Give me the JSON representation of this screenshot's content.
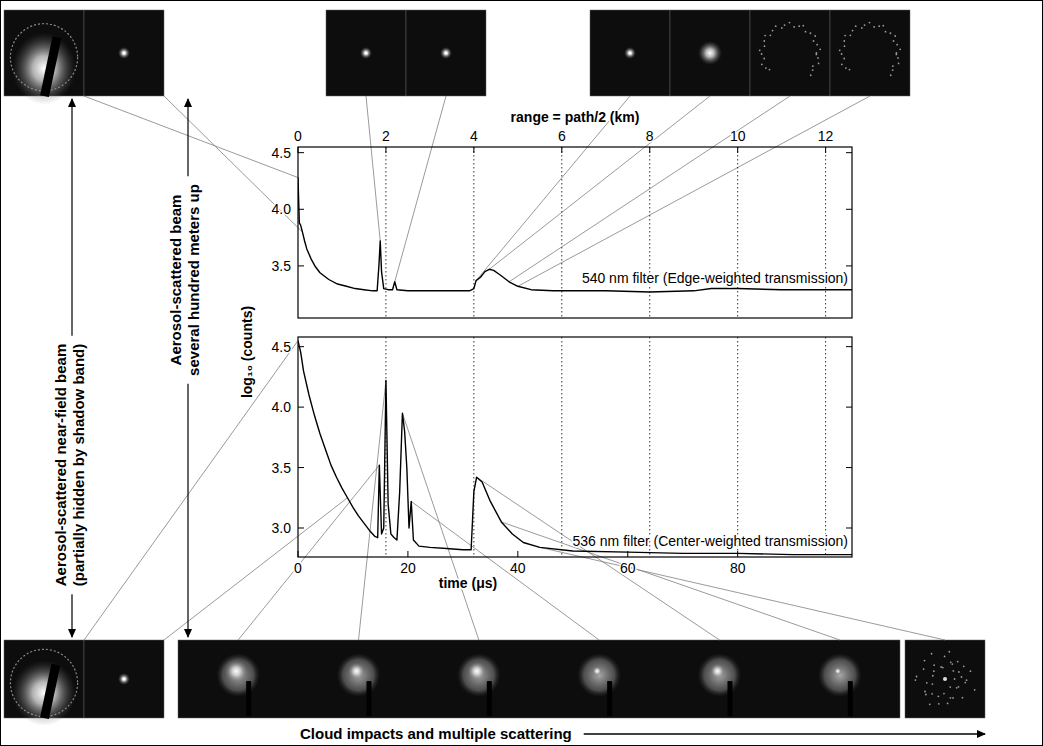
{
  "chart_data": [
    {
      "type": "line",
      "xlabel": "range = path/2 (km)",
      "xlim": [
        0,
        12.6
      ],
      "xticks": [
        0,
        2,
        4,
        6,
        8,
        10,
        12
      ],
      "ylim": [
        3.04,
        4.55
      ],
      "yticks": [
        3.5,
        {
          "value": 4,
          "label": "4.0"
        },
        4.5
      ],
      "grid": true,
      "legend": "lower right",
      "series": [
        {
          "name": "540 nm filter (Edge-weighted transmission)",
          "color": "#000000",
          "x": [
            0,
            0.03,
            0.06,
            0.1,
            0.15,
            0.2,
            0.3,
            0.4,
            0.5,
            0.7,
            0.9,
            1.1,
            1.3,
            1.5,
            1.7,
            1.8,
            1.84,
            1.87,
            1.9,
            1.95,
            2.05,
            2.15,
            2.2,
            2.25,
            2.5,
            3.0,
            3.5,
            3.9,
            4.0,
            4.05,
            4.15,
            4.25,
            4.35,
            4.45,
            4.6,
            4.8,
            5.0,
            5.3,
            5.8,
            7.0,
            8.0,
            9.0,
            9.4,
            10.0,
            11.0,
            12.0,
            12.6
          ],
          "values": [
            4.28,
            3.88,
            3.86,
            3.8,
            3.72,
            3.65,
            3.56,
            3.49,
            3.44,
            3.38,
            3.34,
            3.32,
            3.3,
            3.29,
            3.28,
            3.28,
            3.5,
            3.72,
            3.45,
            3.3,
            3.29,
            3.29,
            3.36,
            3.29,
            3.28,
            3.28,
            3.28,
            3.28,
            3.3,
            3.37,
            3.4,
            3.45,
            3.47,
            3.46,
            3.42,
            3.36,
            3.32,
            3.29,
            3.28,
            3.28,
            3.27,
            3.28,
            3.3,
            3.3,
            3.29,
            3.29,
            3.29
          ]
        }
      ]
    },
    {
      "type": "line",
      "xlabel": "time (μs)",
      "ylabel": "log₁₀ (counts)",
      "xlim": [
        0,
        100.8
      ],
      "xticks": [
        0,
        20,
        40,
        60,
        80
      ],
      "ylim": [
        2.76,
        4.58
      ],
      "yticks": [
        {
          "value": 3,
          "label": "3.0"
        },
        3.5,
        {
          "value": 4,
          "label": "4.0"
        },
        4.5
      ],
      "grid": true,
      "legend": "lower right",
      "series": [
        {
          "name": "536 nm filter (Center-weighted transmission)",
          "color": "#000000",
          "x": [
            0,
            0.5,
            1,
            2,
            3,
            4,
            5,
            6,
            7,
            8,
            9,
            10,
            11,
            12,
            13,
            14,
            14.5,
            14.8,
            15.2,
            15.6,
            16.0,
            16.4,
            16.9,
            17.5,
            18.0,
            18.5,
            19.0,
            19.4,
            19.8,
            20.2,
            20.6,
            21.0,
            22,
            24,
            27,
            30,
            31.5,
            32.0,
            32.5,
            33.5,
            35,
            37,
            39,
            41,
            44,
            50,
            60,
            70,
            80,
            90,
            100,
            100.8
          ],
          "values": [
            4.55,
            4.45,
            4.3,
            4.1,
            3.93,
            3.78,
            3.65,
            3.52,
            3.42,
            3.33,
            3.25,
            3.17,
            3.1,
            3.04,
            2.98,
            2.93,
            2.92,
            3.52,
            2.95,
            3.0,
            4.22,
            3.2,
            2.95,
            2.92,
            2.9,
            3.3,
            3.95,
            3.8,
            3.5,
            3.0,
            3.22,
            2.9,
            2.85,
            2.84,
            2.83,
            2.82,
            2.82,
            3.3,
            3.42,
            3.38,
            3.22,
            3.05,
            2.95,
            2.88,
            2.84,
            2.81,
            2.8,
            2.79,
            2.79,
            2.78,
            2.78,
            2.78
          ]
        }
      ]
    }
  ],
  "annotations": {
    "near_field": [
      "Aerosol-scattered near-field beam",
      "(partially hidden by shadow band)"
    ],
    "beam_up": [
      "Aerosol-scattered beam",
      "several hundred meters up"
    ],
    "cloud": "Cloud impacts and multiple scattering"
  }
}
